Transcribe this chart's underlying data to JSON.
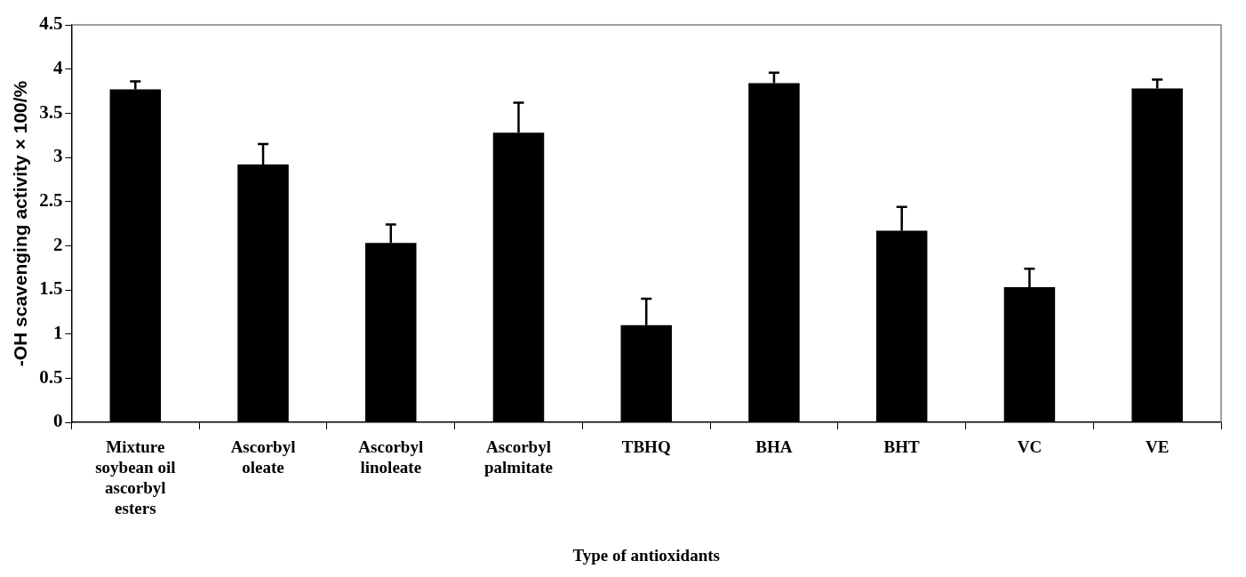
{
  "chart_data": {
    "type": "bar",
    "xlabel": "Type of antioxidants",
    "ylabel": "-OH scavenging activity × 100/%",
    "categories": [
      "Mixture soybean oil ascorbyl esters",
      "Ascorbyl oleate",
      "Ascorbyl linoleate",
      "Ascorbyl palmitate",
      "TBHQ",
      "BHA",
      "BHT",
      "VC",
      "VE"
    ],
    "values": [
      3.77,
      2.92,
      2.03,
      3.28,
      1.1,
      3.84,
      2.17,
      1.53,
      3.78
    ],
    "errors": [
      [
        3.77,
        3.86
      ],
      [
        2.92,
        3.15
      ],
      [
        2.03,
        2.24
      ],
      [
        3.28,
        3.62
      ],
      [
        1.1,
        1.4
      ],
      [
        3.84,
        3.96
      ],
      [
        2.17,
        2.44
      ],
      [
        1.53,
        1.74
      ],
      [
        3.78,
        3.88
      ]
    ],
    "color": "#000000",
    "ylim": [
      0,
      4.5
    ],
    "yticks": [
      0,
      0.5,
      1,
      1.5,
      2,
      2.5,
      3,
      3.5,
      4,
      4.5
    ],
    "grid": false,
    "legend": false
  }
}
